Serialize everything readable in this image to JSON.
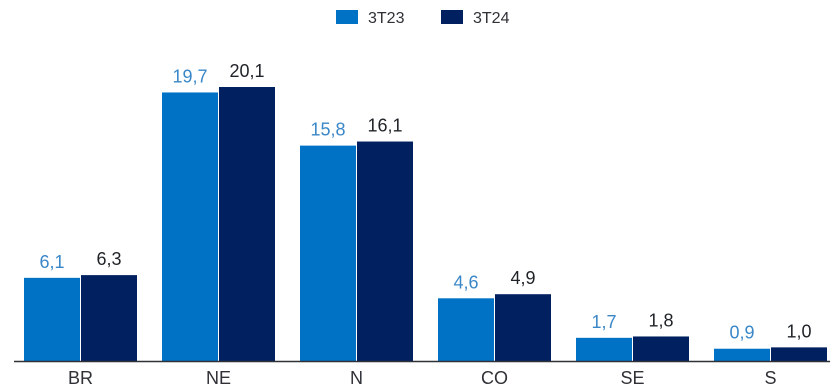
{
  "chart_data": {
    "type": "bar",
    "categories": [
      "BR",
      "NE",
      "N",
      "CO",
      "SE",
      "S"
    ],
    "series": [
      {
        "name": "3T23",
        "values": [
          6.1,
          19.7,
          15.8,
          4.6,
          1.7,
          0.9
        ],
        "labels": [
          "6,1",
          "19,7",
          "15,8",
          "4,6",
          "1,7",
          "0,9"
        ],
        "color": "#0072c6",
        "label_color": "#3a87c8"
      },
      {
        "name": "3T24",
        "values": [
          6.3,
          20.1,
          16.1,
          4.9,
          1.8,
          1.0
        ],
        "labels": [
          "6,3",
          "20,1",
          "16,1",
          "4,9",
          "1,8",
          "1,0"
        ],
        "color": "#002060",
        "label_color": "#1f2328"
      }
    ],
    "title": "",
    "xlabel": "",
    "ylabel": "",
    "ylim": [
      0,
      21.5
    ],
    "grid": false,
    "legend": "top-center",
    "axis_color": "#2f3136"
  }
}
